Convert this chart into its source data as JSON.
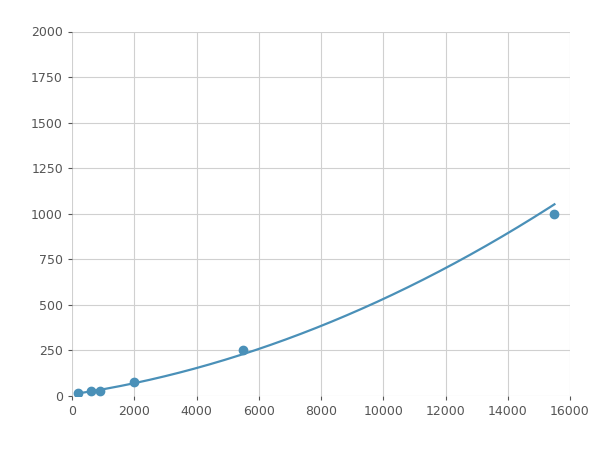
{
  "x": [
    200,
    600,
    900,
    2000,
    5500,
    15500
  ],
  "y": [
    15,
    25,
    30,
    75,
    250,
    1000
  ],
  "line_color": "#4a90b8",
  "marker_color": "#4a90b8",
  "marker_size": 6,
  "line_width": 1.6,
  "xlim": [
    0,
    16000
  ],
  "ylim": [
    0,
    2000
  ],
  "xticks": [
    0,
    2000,
    4000,
    6000,
    8000,
    10000,
    12000,
    14000,
    16000
  ],
  "yticks": [
    0,
    250,
    500,
    750,
    1000,
    1250,
    1500,
    1750,
    2000
  ],
  "grid_color": "#d0d0d0",
  "plot_bg": "#ffffff",
  "figure_bg": "#ffffff"
}
